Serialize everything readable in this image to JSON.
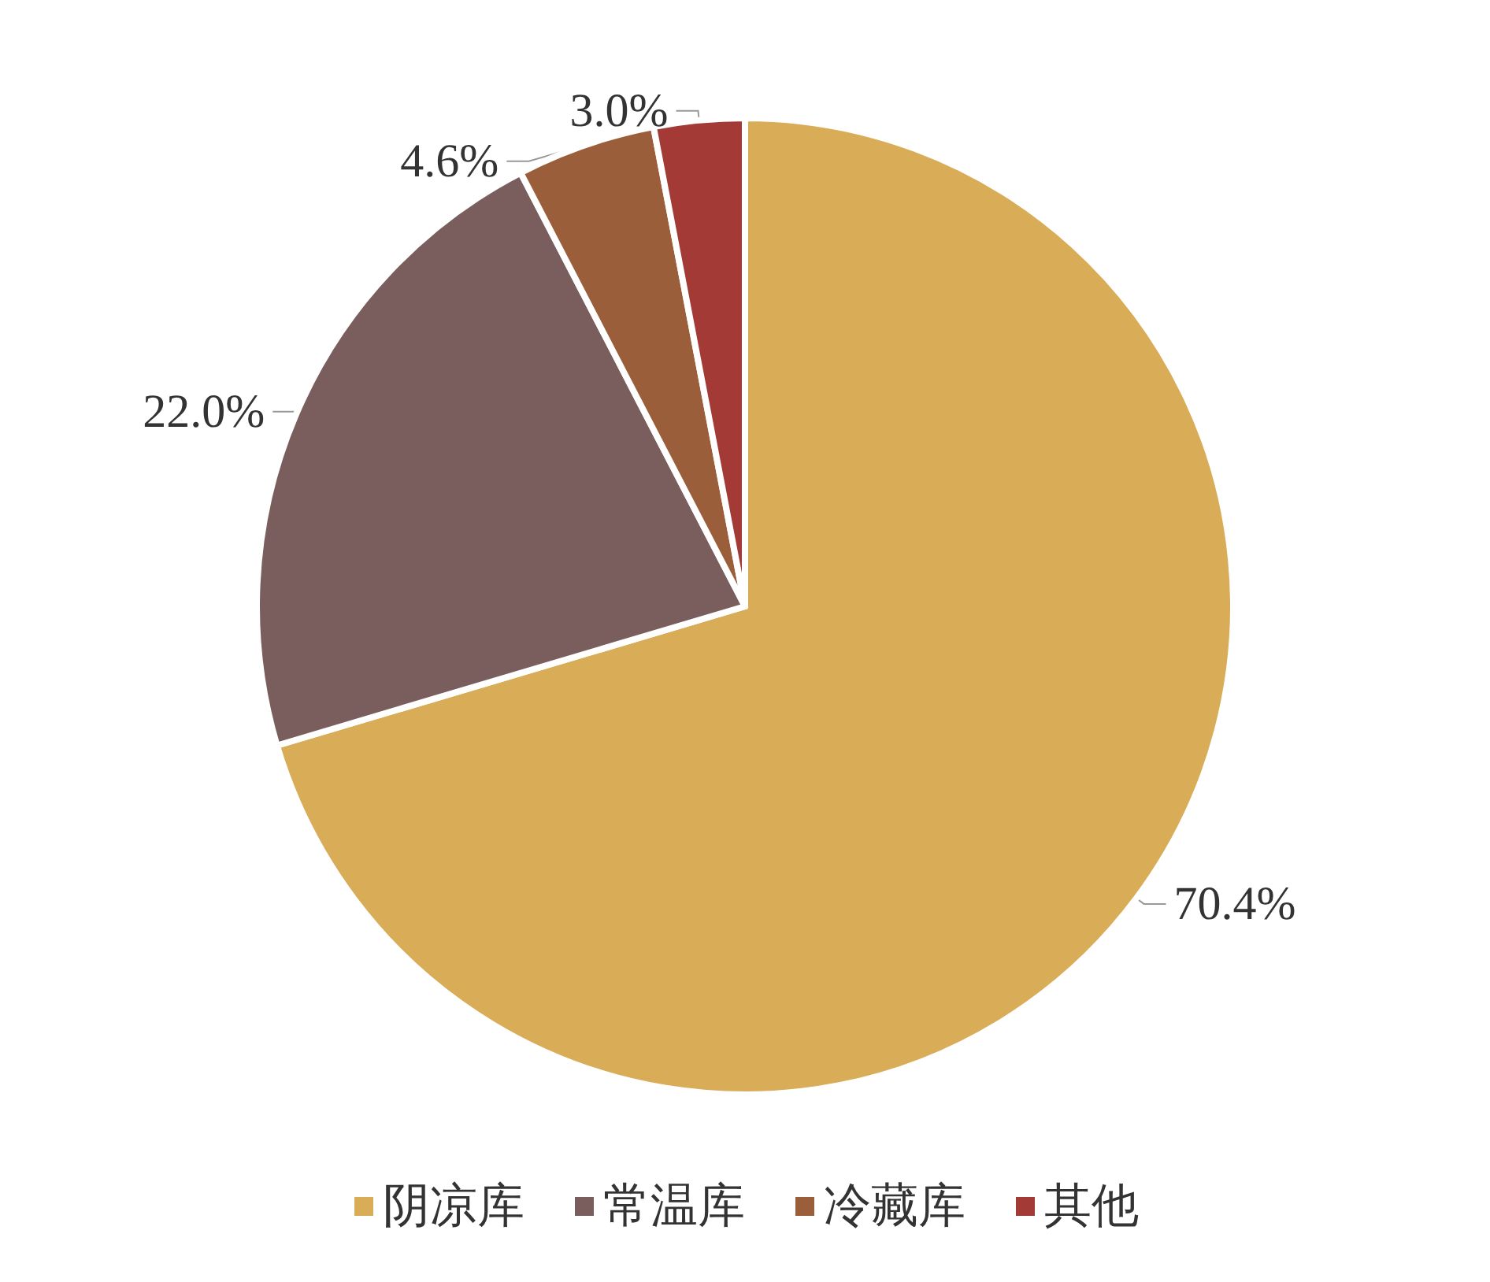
{
  "chart_data": {
    "type": "pie",
    "categories": [
      "阴凉库",
      "常温库",
      "冷藏库",
      "其他"
    ],
    "values": [
      70.4,
      22.0,
      4.6,
      3.0
    ],
    "colors": [
      "#d9ac58",
      "#7a5e5e",
      "#9b5e3a",
      "#a33a35"
    ],
    "value_labels": [
      "70.4%",
      "22.0%",
      "4.6%",
      "3.0%"
    ],
    "legend": "bottom"
  }
}
